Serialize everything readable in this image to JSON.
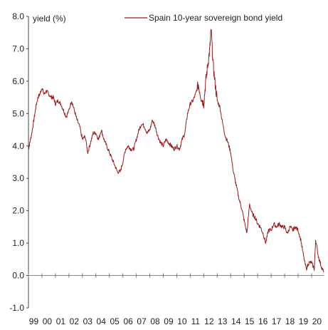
{
  "chart_data": {
    "type": "line",
    "title": "",
    "ylabel": "yield (%)",
    "xlabel": "",
    "ylim": [
      -1.0,
      8.0
    ],
    "y_ticks": [
      "8.0",
      "7.0",
      "6.0",
      "5.0",
      "4.0",
      "3.0",
      "2.0",
      "1.0",
      "0.0",
      "-1.0"
    ],
    "y_tick_values": [
      8,
      7,
      6,
      5,
      4,
      3,
      2,
      1,
      0,
      -1
    ],
    "x_tick_labels": [
      "99",
      "00",
      "01",
      "02",
      "03",
      "04",
      "05",
      "06",
      "07",
      "08",
      "09",
      "10",
      "11",
      "12",
      "13",
      "14",
      "15",
      "16",
      "17",
      "18",
      "19",
      "20"
    ],
    "xlim": [
      1999.0,
      2020.9
    ],
    "legend_position": "top-center",
    "series": [
      {
        "name": "Spain 10-year sovereign bond yield",
        "color": "#9b1b1b",
        "x": [
          1999.0,
          1999.1,
          1999.25,
          1999.4,
          1999.55,
          1999.7,
          1999.85,
          2000.0,
          2000.15,
          2000.35,
          2000.5,
          2000.7,
          2000.85,
          2001.0,
          2001.2,
          2001.4,
          2001.6,
          2001.8,
          2002.0,
          2002.2,
          2002.4,
          2002.6,
          2002.8,
          2003.0,
          2003.2,
          2003.4,
          2003.6,
          2003.8,
          2004.0,
          2004.2,
          2004.4,
          2004.6,
          2004.8,
          2005.0,
          2005.2,
          2005.4,
          2005.6,
          2005.8,
          2006.0,
          2006.2,
          2006.4,
          2006.6,
          2006.8,
          2007.0,
          2007.2,
          2007.4,
          2007.6,
          2007.8,
          2008.0,
          2008.2,
          2008.4,
          2008.6,
          2008.8,
          2009.0,
          2009.2,
          2009.4,
          2009.6,
          2009.8,
          2010.0,
          2010.2,
          2010.4,
          2010.6,
          2010.8,
          2011.0,
          2011.2,
          2011.4,
          2011.6,
          2011.8,
          2012.0,
          2012.15,
          2012.3,
          2012.45,
          2012.55,
          2012.7,
          2012.85,
          2013.0,
          2013.2,
          2013.4,
          2013.6,
          2013.8,
          2014.0,
          2014.2,
          2014.4,
          2014.6,
          2014.8,
          2015.0,
          2015.2,
          2015.4,
          2015.6,
          2015.8,
          2016.0,
          2016.2,
          2016.4,
          2016.6,
          2016.8,
          2017.0,
          2017.2,
          2017.4,
          2017.6,
          2017.8,
          2018.0,
          2018.2,
          2018.4,
          2018.6,
          2018.8,
          2019.0,
          2019.2,
          2019.4,
          2019.6,
          2019.8,
          2020.0,
          2020.2,
          2020.3,
          2020.5,
          2020.7,
          2020.9
        ],
        "y": [
          3.9,
          4.1,
          4.4,
          4.8,
          5.2,
          5.5,
          5.6,
          5.8,
          5.6,
          5.7,
          5.6,
          5.5,
          5.5,
          5.3,
          5.4,
          5.3,
          5.1,
          4.9,
          5.1,
          5.4,
          5.1,
          4.8,
          4.6,
          4.2,
          4.3,
          3.8,
          4.1,
          4.4,
          4.4,
          4.2,
          4.5,
          4.2,
          4.0,
          3.8,
          3.6,
          3.4,
          3.2,
          3.2,
          3.5,
          3.9,
          4.0,
          3.9,
          3.9,
          4.2,
          4.5,
          4.7,
          4.6,
          4.4,
          4.5,
          4.8,
          4.6,
          4.3,
          4.1,
          4.0,
          4.2,
          4.1,
          4.0,
          3.9,
          4.0,
          3.9,
          4.2,
          4.4,
          5.0,
          5.3,
          5.4,
          5.6,
          5.9,
          5.5,
          5.3,
          6.0,
          6.5,
          7.0,
          7.6,
          6.5,
          5.9,
          5.4,
          5.2,
          4.7,
          4.3,
          4.1,
          3.8,
          3.2,
          2.8,
          2.4,
          2.1,
          1.7,
          1.3,
          2.2,
          1.9,
          1.8,
          1.6,
          1.5,
          1.3,
          1.0,
          1.4,
          1.4,
          1.6,
          1.5,
          1.6,
          1.5,
          1.5,
          1.3,
          1.5,
          1.4,
          1.5,
          1.4,
          1.1,
          0.6,
          0.2,
          0.4,
          0.4,
          0.2,
          1.1,
          0.6,
          0.3,
          0.1
        ]
      }
    ]
  }
}
